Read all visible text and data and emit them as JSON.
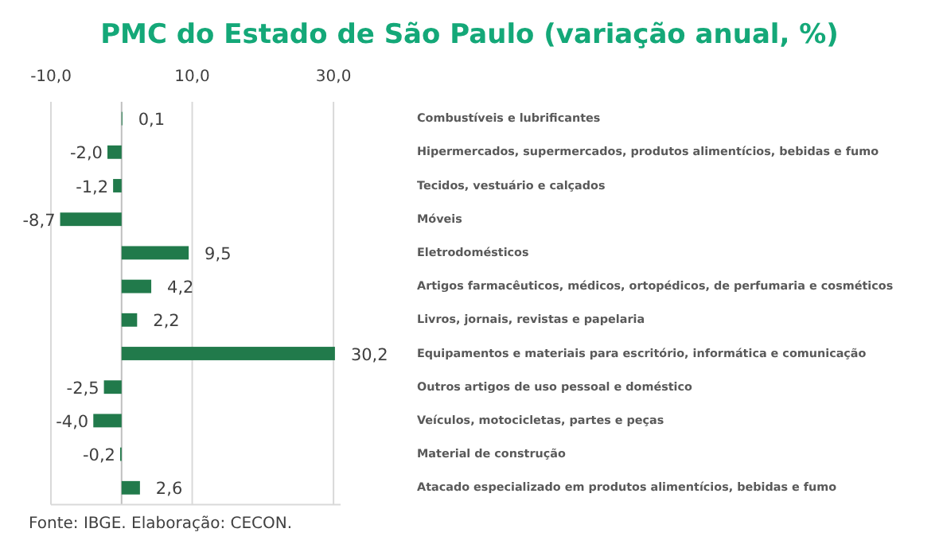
{
  "chart_data": {
    "type": "bar",
    "orientation": "horizontal",
    "title": "PMC do Estado de São Paulo (variação anual, %)",
    "categories": [
      "Combustíveis e lubrificantes",
      "Hipermercados, supermercados, produtos alimentícios, bebidas e fumo",
      "Tecidos, vestuário e calçados",
      "Móveis",
      "Eletrodomésticos",
      "Artigos farmacêuticos, médicos, ortopédicos, de perfumaria e cosméticos",
      "Livros, jornais, revistas e papelaria",
      "Equipamentos e materiais para escritório, informática e comunicação",
      "Outros artigos de uso pessoal e doméstico",
      "Veículos, motocicletas, partes e peças",
      "Material de construção",
      "Atacado especializado em produtos alimentícios, bebidas e fumo"
    ],
    "values": [
      0.1,
      -2.0,
      -1.2,
      -8.7,
      9.5,
      4.2,
      2.2,
      30.2,
      -2.5,
      -4.0,
      -0.2,
      2.6
    ],
    "value_labels": [
      "0,1",
      "-2,0",
      "-1,2",
      "-8,7",
      "9,5",
      "4,2",
      "2,2",
      "30,2",
      "-2,5",
      "-4,0",
      "-0,2",
      "2,6"
    ],
    "color": "#217a4b",
    "xlim": [
      -10,
      31
    ],
    "xticks": [
      {
        "value": -10,
        "label": "-10,0"
      },
      {
        "value": 10,
        "label": "10,0"
      },
      {
        "value": 30,
        "label": "30,0"
      }
    ],
    "grid": "x",
    "annotations": [
      "Fonte: IBGE. Elaboração: CECON."
    ]
  }
}
